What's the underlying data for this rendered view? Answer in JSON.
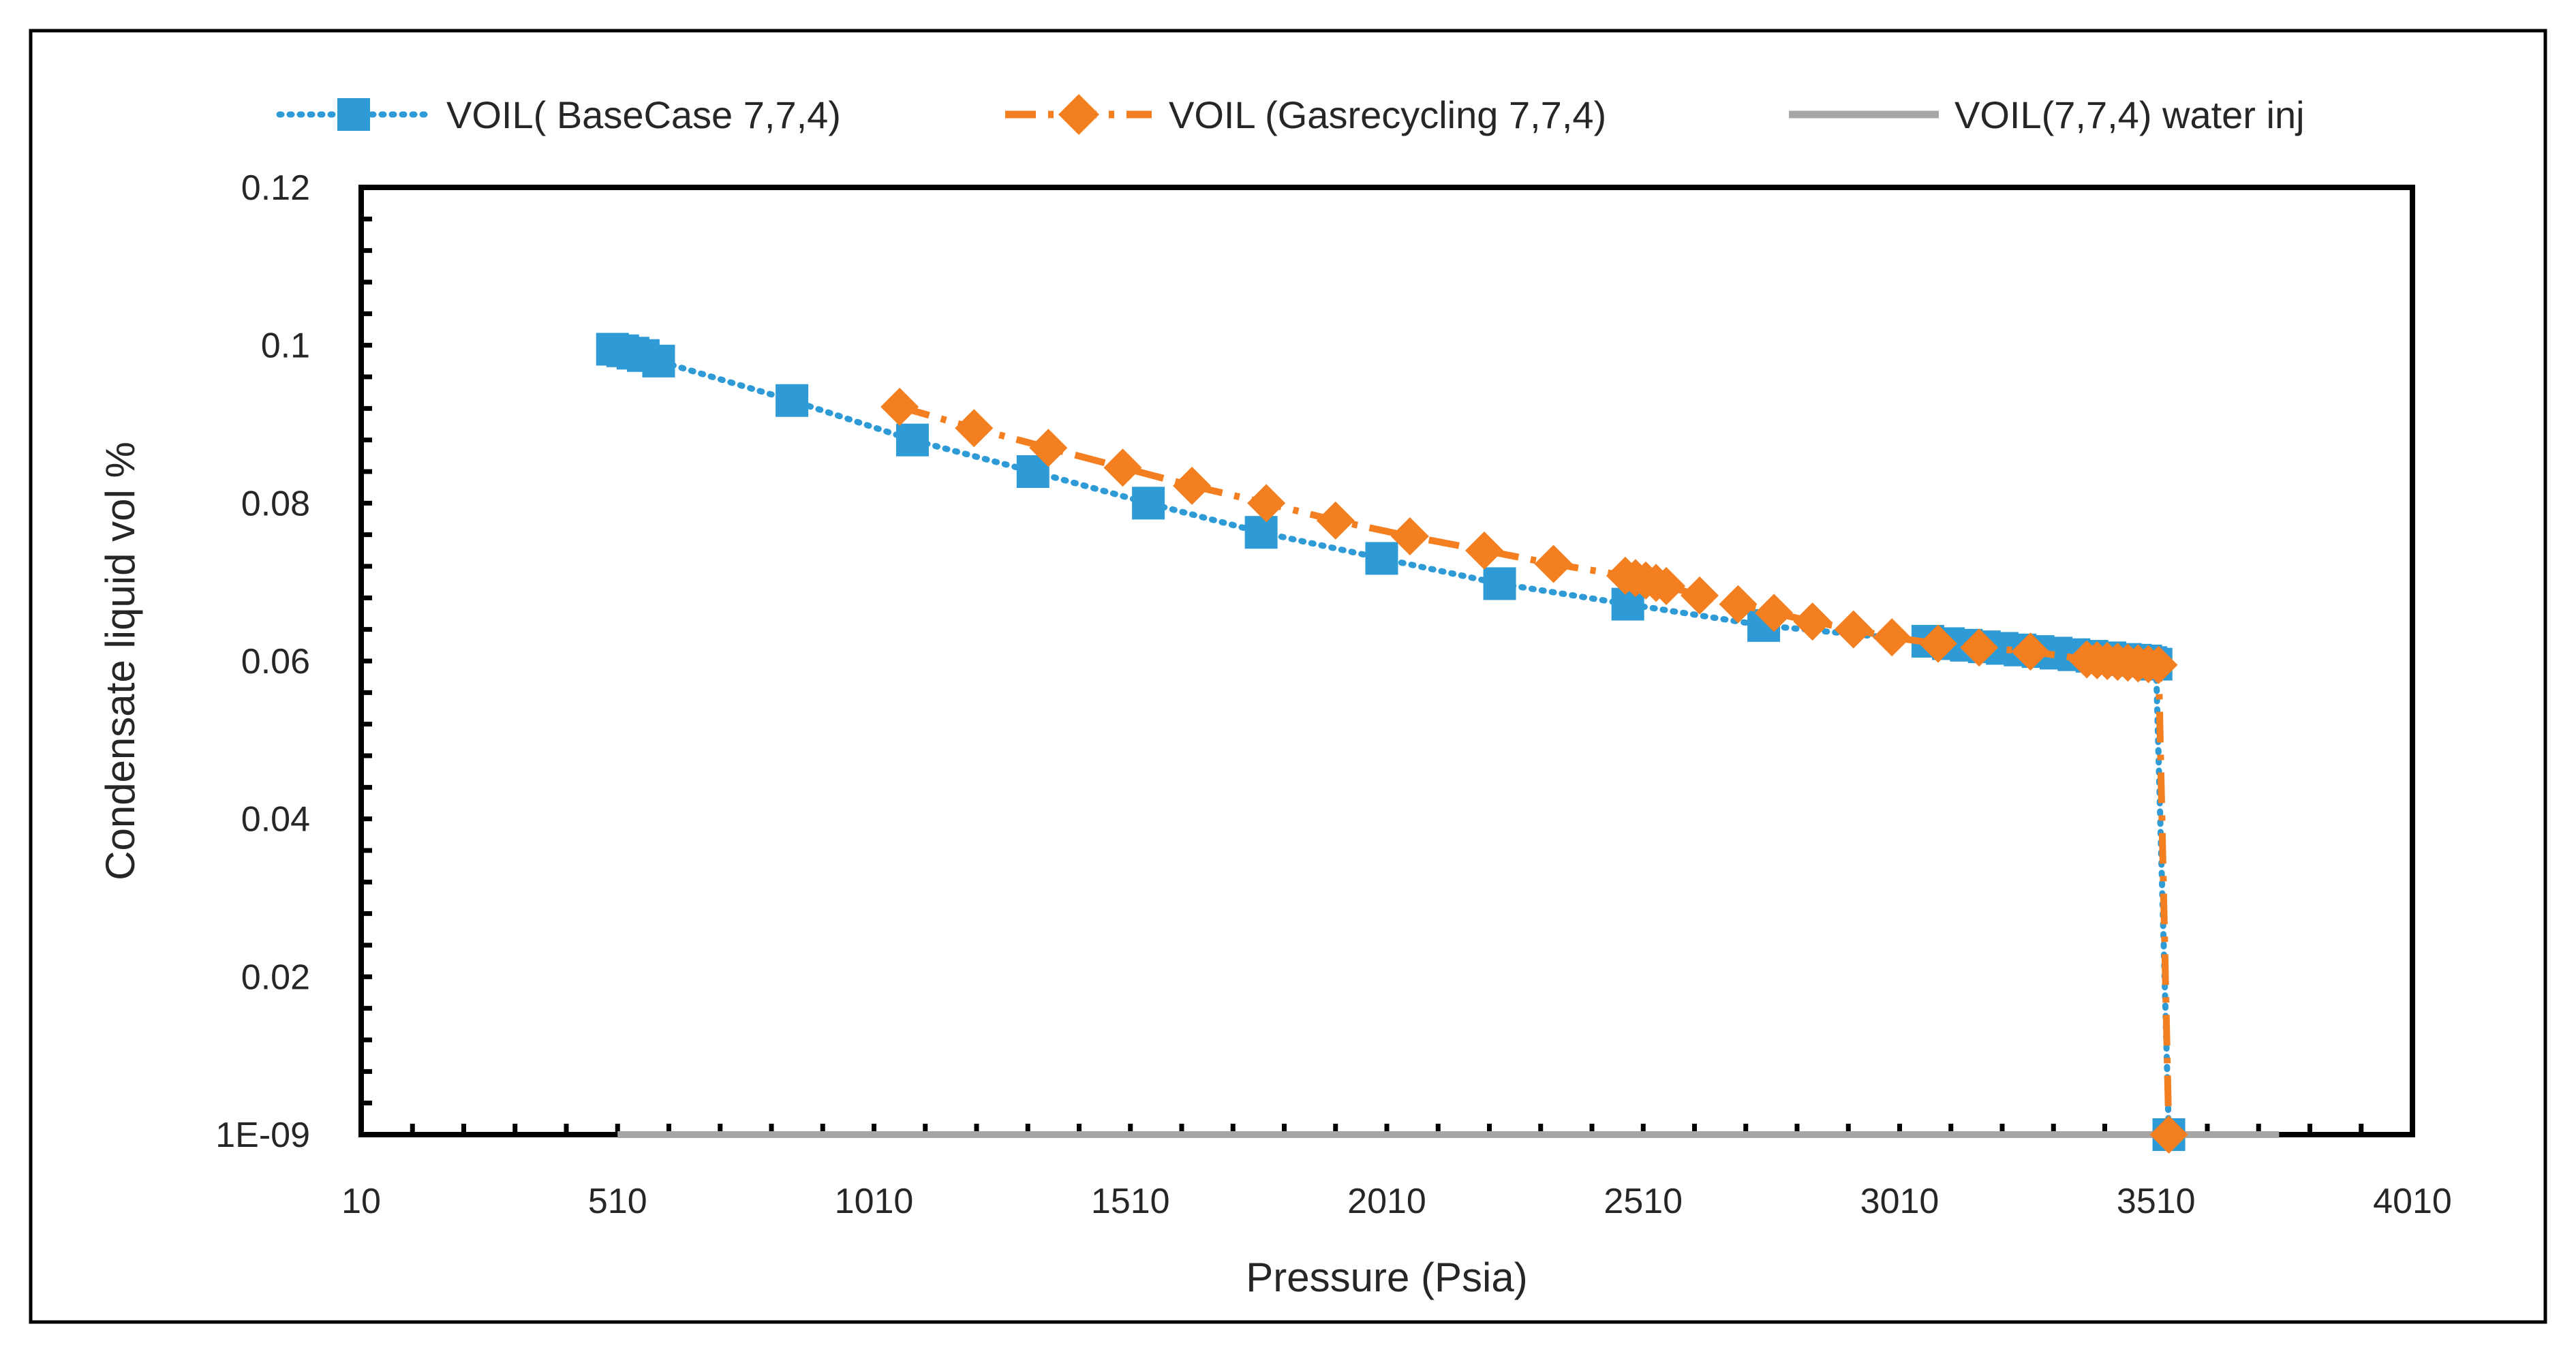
{
  "chart_data": {
    "type": "line",
    "title": "",
    "xlabel": "Pressure (Psia)",
    "ylabel": "Condensate liquid vol %",
    "xlim": [
      10,
      4010
    ],
    "ylim": [
      0,
      0.12
    ],
    "x_ticks": [
      "10",
      "510",
      "1010",
      "1510",
      "2010",
      "2510",
      "3010",
      "3510",
      "4010"
    ],
    "x_tick_values": [
      10,
      510,
      1010,
      1510,
      2010,
      2510,
      3010,
      3510,
      4010
    ],
    "y_ticks": [
      "1E-09",
      "0.02",
      "0.04",
      "0.06",
      "0.08",
      "0.1",
      "0.12"
    ],
    "y_tick_values": [
      0,
      0.02,
      0.04,
      0.06,
      0.08,
      0.1,
      0.12
    ],
    "grid": false,
    "legend_position": "top",
    "series": [
      {
        "name": "VOIL( BaseCase 7,7,4)",
        "color": "#2e9bd6",
        "line_style": "dotted",
        "marker": "square",
        "x": [
          500,
          520,
          540,
          560,
          590,
          850,
          1085,
          1320,
          1545,
          1765,
          2000,
          2230,
          2480,
          2745,
          3065,
          3105,
          3140,
          3175,
          3210,
          3245,
          3280,
          3315,
          3350,
          3385,
          3420,
          3450,
          3470,
          3490,
          3500,
          3510,
          3535
        ],
        "y": [
          0.0995,
          0.0993,
          0.099,
          0.0987,
          0.098,
          0.093,
          0.088,
          0.084,
          0.08,
          0.0763,
          0.073,
          0.0698,
          0.0672,
          0.0645,
          0.0625,
          0.0622,
          0.062,
          0.0618,
          0.0616,
          0.0614,
          0.0612,
          0.061,
          0.0608,
          0.0606,
          0.0604,
          0.0602,
          0.0601,
          0.06,
          0.0598,
          0.0596,
          0.0
        ]
      },
      {
        "name": "VOIL (Gasrecycling 7,7,4)",
        "color": "#f47f20",
        "line_style": "dash-dot",
        "marker": "diamond",
        "x": [
          1060,
          1205,
          1350,
          1495,
          1630,
          1775,
          1910,
          2055,
          2200,
          2335,
          2475,
          2495,
          2515,
          2535,
          2555,
          2620,
          2695,
          2765,
          2840,
          2920,
          2995,
          3085,
          3165,
          3265,
          3375,
          3395,
          3415,
          3435,
          3455,
          3475,
          3495,
          3515,
          3535
        ],
        "y": [
          0.0922,
          0.0895,
          0.087,
          0.0845,
          0.0822,
          0.08,
          0.0778,
          0.0758,
          0.074,
          0.0723,
          0.0708,
          0.0705,
          0.0702,
          0.0699,
          0.0695,
          0.0683,
          0.0672,
          0.0661,
          0.065,
          0.064,
          0.063,
          0.0622,
          0.0617,
          0.0612,
          0.0602,
          0.0601,
          0.06,
          0.0599,
          0.0598,
          0.0597,
          0.0596,
          0.0595,
          0.0
        ]
      },
      {
        "name": "VOIL(7,7,4) water inj",
        "color": "#a6a6a6",
        "line_style": "solid",
        "marker": "none",
        "x": [
          510,
          3750
        ],
        "y": [
          0.0,
          0.0
        ]
      }
    ]
  }
}
